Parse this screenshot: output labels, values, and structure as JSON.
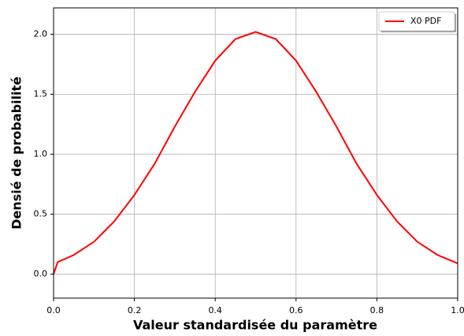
{
  "chart_data": {
    "type": "line",
    "x_label": "Valeur standardisée du paramètre",
    "y_label": "Densié de probabilité",
    "x": [
      0,
      0.01,
      0.05,
      0.1,
      0.15,
      0.2,
      0.25,
      0.3,
      0.35,
      0.4,
      0.45,
      0.5,
      0.55,
      0.6,
      0.65,
      0.7,
      0.75,
      0.8,
      0.85,
      0.9,
      0.95,
      1.0
    ],
    "series": [
      {
        "name": "X0 PDF",
        "color": "#ff0000",
        "values": [
          0,
          0.1,
          0.16,
          0.27,
          0.44,
          0.66,
          0.92,
          1.23,
          1.52,
          1.78,
          1.96,
          2.02,
          1.96,
          1.78,
          1.52,
          1.23,
          0.92,
          0.66,
          0.44,
          0.27,
          0.16,
          0.09
        ]
      }
    ],
    "xlim": [
      0,
      1
    ],
    "ylim": [
      -0.2,
      2.22
    ],
    "xticks": [
      {
        "value": 0,
        "label": "0.0"
      },
      0.2,
      0.4,
      0.6,
      0.8,
      {
        "value": 1,
        "label": "1.0"
      }
    ],
    "yticks": [
      {
        "value": 0,
        "label": "0.0"
      },
      0.5,
      {
        "value": 1,
        "label": "1.0"
      },
      1.5,
      {
        "value": 2,
        "label": "2.0"
      }
    ],
    "grid": true,
    "legend": "upper right"
  }
}
